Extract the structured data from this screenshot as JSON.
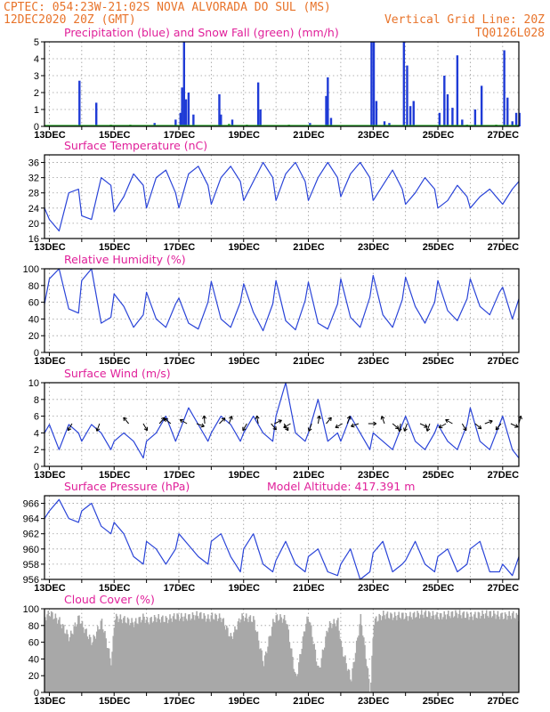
{
  "header": {
    "line1_left": "CPTEC:  054:23W-21:02S  NOVA ALVORADA DO SUL (MS)",
    "line2_left": "12DEC2020 20Z (GMT)",
    "line2_right": "Vertical Grid Line: 20Z",
    "line3_right": "TQ0126L028"
  },
  "colors": {
    "header": "#e8732a",
    "panel_title": "#e0209a",
    "precip": "#1f3bd6",
    "snow": "#22a022",
    "line": "#2a44d8",
    "cloud": "#a8a8a8",
    "wind_arrow": "#000000",
    "grid": "#9a9a9a"
  },
  "chart_data": [
    {
      "id": "precip",
      "type": "bar",
      "title": "Precipitation (blue) and Snow Fall (green) (mm/h)",
      "ylim": [
        0,
        5
      ],
      "yticks": [
        0,
        1,
        2,
        3,
        4,
        5
      ],
      "xticks": [
        "13DEC",
        "15DEC",
        "17DEC",
        "19DEC",
        "21DEC",
        "23DEC",
        "25DEC",
        "27DEC"
      ],
      "series": [
        {
          "name": "Precipitation",
          "color": "#1f3bd6",
          "values": [
            [
              0.93,
              2.7
            ],
            [
              1.45,
              1.4
            ],
            [
              3.25,
              0.2
            ],
            [
              3.9,
              0.4
            ],
            [
              4.05,
              0.8
            ],
            [
              4.1,
              2.3
            ],
            [
              4.16,
              5.0
            ],
            [
              4.22,
              1.6
            ],
            [
              4.3,
              2.0
            ],
            [
              4.45,
              0.7
            ],
            [
              5.25,
              1.9
            ],
            [
              5.3,
              0.7
            ],
            [
              5.65,
              0.4
            ],
            [
              6.45,
              2.6
            ],
            [
              6.52,
              1.0
            ],
            [
              8.05,
              0.2
            ],
            [
              8.55,
              1.8
            ],
            [
              8.6,
              2.9
            ],
            [
              8.7,
              0.5
            ],
            [
              9.95,
              5.0
            ],
            [
              10.02,
              5.0
            ],
            [
              10.1,
              1.5
            ],
            [
              10.35,
              0.3
            ],
            [
              10.5,
              0.2
            ],
            [
              10.95,
              5.0
            ],
            [
              11.05,
              3.6
            ],
            [
              11.15,
              1.2
            ],
            [
              11.25,
              1.5
            ],
            [
              12.05,
              0.8
            ],
            [
              12.2,
              3.0
            ],
            [
              12.3,
              1.9
            ],
            [
              12.45,
              1.1
            ],
            [
              12.6,
              4.2
            ],
            [
              12.75,
              0.4
            ],
            [
              13.15,
              1.0
            ],
            [
              13.35,
              2.4
            ],
            [
              14.05,
              4.5
            ],
            [
              14.15,
              1.7
            ],
            [
              14.3,
              0.3
            ],
            [
              14.42,
              0.8
            ],
            [
              14.52,
              0.8
            ]
          ]
        },
        {
          "name": "Snow Fall",
          "color": "#22a022",
          "values": [
            [
              1.9,
              0.1
            ],
            [
              2.5,
              0.1
            ],
            [
              5.55,
              0.15
            ],
            [
              6.1,
              0.1
            ],
            [
              7.4,
              0.1
            ],
            [
              12.9,
              0.1
            ],
            [
              13.8,
              0.1
            ]
          ]
        }
      ]
    },
    {
      "id": "temp",
      "type": "line",
      "title": "Surface Temperature (nC)",
      "ylim": [
        16,
        38
      ],
      "yticks": [
        16,
        20,
        24,
        28,
        32,
        36
      ],
      "xticks": [
        "13DEC",
        "15DEC",
        "17DEC",
        "19DEC",
        "21DEC",
        "23DEC",
        "25DEC",
        "27DEC"
      ],
      "x": [
        -0.15,
        0.0,
        0.3,
        0.6,
        0.9,
        1.0,
        1.3,
        1.6,
        1.9,
        2.0,
        2.3,
        2.6,
        2.9,
        3.0,
        3.3,
        3.6,
        3.9,
        4.0,
        4.3,
        4.6,
        4.9,
        5.0,
        5.3,
        5.6,
        5.9,
        6.0,
        6.3,
        6.6,
        6.9,
        7.0,
        7.3,
        7.6,
        7.9,
        8.0,
        8.3,
        8.6,
        8.9,
        9.0,
        9.3,
        9.6,
        9.9,
        10.0,
        10.3,
        10.6,
        10.9,
        11.0,
        11.3,
        11.6,
        11.9,
        12.0,
        12.3,
        12.6,
        12.9,
        13.0,
        13.3,
        13.6,
        13.9,
        14.0,
        14.3,
        14.5
      ],
      "series": [
        {
          "values": [
            24,
            21,
            18,
            28,
            29,
            22,
            21,
            32,
            30,
            23,
            27,
            33,
            30,
            24,
            32,
            34,
            28,
            24,
            33,
            35,
            30,
            25,
            32,
            35,
            31,
            26,
            31,
            36,
            32,
            26,
            33,
            36,
            31,
            26,
            32,
            36,
            32,
            27,
            33,
            36,
            32,
            26,
            30,
            34,
            29,
            25,
            28,
            32,
            29,
            24,
            26,
            30,
            27,
            24,
            27,
            29,
            26,
            25,
            29,
            31
          ]
        }
      ]
    },
    {
      "id": "rh",
      "type": "line",
      "title": "Relative Humidity (%)",
      "ylim": [
        0,
        100
      ],
      "yticks": [
        0,
        20,
        40,
        60,
        80,
        100
      ],
      "xticks": [
        "13DEC",
        "15DEC",
        "17DEC",
        "19DEC",
        "21DEC",
        "23DEC",
        "25DEC",
        "27DEC"
      ],
      "x": [
        -0.15,
        0.0,
        0.3,
        0.6,
        0.9,
        1.0,
        1.3,
        1.6,
        1.9,
        2.0,
        2.3,
        2.6,
        2.9,
        3.0,
        3.3,
        3.6,
        3.9,
        4.0,
        4.3,
        4.6,
        4.9,
        5.0,
        5.3,
        5.6,
        5.9,
        6.0,
        6.3,
        6.6,
        6.9,
        7.0,
        7.3,
        7.6,
        7.9,
        8.0,
        8.3,
        8.6,
        8.9,
        9.0,
        9.3,
        9.6,
        9.9,
        10.0,
        10.3,
        10.6,
        10.9,
        11.0,
        11.3,
        11.6,
        11.9,
        12.0,
        12.3,
        12.6,
        12.9,
        13.0,
        13.3,
        13.6,
        13.9,
        14.0,
        14.3,
        14.5
      ],
      "series": [
        {
          "values": [
            58,
            88,
            100,
            52,
            47,
            86,
            100,
            35,
            42,
            70,
            55,
            30,
            45,
            72,
            40,
            30,
            58,
            65,
            35,
            28,
            60,
            85,
            40,
            30,
            60,
            82,
            48,
            26,
            58,
            86,
            38,
            27,
            62,
            84,
            35,
            28,
            58,
            88,
            42,
            30,
            66,
            92,
            45,
            30,
            63,
            90,
            55,
            35,
            60,
            86,
            50,
            38,
            64,
            88,
            55,
            45,
            72,
            78,
            40,
            64
          ]
        }
      ]
    },
    {
      "id": "wind",
      "type": "line",
      "title": "Surface Wind (m/s)",
      "ylim": [
        0,
        10
      ],
      "yticks": [
        0,
        2,
        4,
        6,
        8,
        10
      ],
      "xticks": [
        "13DEC",
        "15DEC",
        "17DEC",
        "19DEC",
        "21DEC",
        "23DEC",
        "25DEC",
        "27DEC"
      ],
      "x": [
        -0.15,
        0.0,
        0.3,
        0.6,
        0.9,
        1.0,
        1.3,
        1.6,
        1.9,
        2.0,
        2.3,
        2.6,
        2.9,
        3.0,
        3.3,
        3.6,
        3.9,
        4.0,
        4.3,
        4.6,
        4.9,
        5.0,
        5.3,
        5.6,
        5.9,
        6.0,
        6.3,
        6.6,
        6.9,
        7.0,
        7.3,
        7.6,
        7.9,
        8.0,
        8.3,
        8.6,
        8.9,
        9.0,
        9.3,
        9.6,
        9.9,
        10.0,
        10.3,
        10.6,
        10.9,
        11.0,
        11.3,
        11.6,
        11.9,
        12.0,
        12.3,
        12.6,
        12.9,
        13.0,
        13.3,
        13.6,
        13.9,
        14.0,
        14.3,
        14.5
      ],
      "series": [
        {
          "values": [
            4,
            5,
            2,
            5,
            4,
            3,
            5,
            4,
            2,
            3,
            4,
            3,
            1,
            3,
            4,
            6,
            3,
            4,
            7,
            5,
            3,
            4,
            6,
            5,
            3,
            4,
            6,
            4,
            3,
            6,
            10,
            4,
            3,
            4,
            8,
            3,
            4,
            3,
            6,
            4,
            2,
            4,
            3,
            2,
            5,
            6,
            3,
            2,
            4,
            5,
            3,
            2,
            5,
            7,
            3,
            2,
            5,
            6,
            2,
            1
          ]
        }
      ],
      "arrows": [
        [
          0.7,
          210
        ],
        [
          1.55,
          200
        ],
        [
          2.45,
          320
        ],
        [
          2.9,
          150
        ],
        [
          3.4,
          40
        ],
        [
          3.75,
          310
        ],
        [
          4.25,
          300
        ],
        [
          4.55,
          110
        ],
        [
          4.8,
          355
        ],
        [
          5.25,
          45
        ],
        [
          5.55,
          20
        ],
        [
          6.1,
          210
        ],
        [
          6.45,
          350
        ],
        [
          6.85,
          140
        ],
        [
          6.95,
          65
        ],
        [
          7.25,
          150
        ],
        [
          7.45,
          240
        ],
        [
          8.1,
          200
        ],
        [
          8.3,
          10
        ],
        [
          8.55,
          40
        ],
        [
          9.05,
          240
        ],
        [
          9.2,
          20
        ],
        [
          9.55,
          250
        ],
        [
          9.85,
          90
        ],
        [
          10.35,
          340
        ],
        [
          10.6,
          130
        ],
        [
          10.85,
          190
        ],
        [
          11.05,
          200
        ],
        [
          11.45,
          115
        ],
        [
          11.75,
          200
        ],
        [
          12.25,
          240
        ],
        [
          12.45,
          300
        ],
        [
          12.75,
          150
        ],
        [
          13.15,
          130
        ],
        [
          13.45,
          70
        ],
        [
          13.95,
          220
        ],
        [
          14.25,
          115
        ],
        [
          14.5,
          15
        ]
      ]
    },
    {
      "id": "pressure",
      "type": "line",
      "title": "Surface Pressure (hPa)",
      "annotation": "Model Altitude: 417.391 m",
      "ylim": [
        956,
        967
      ],
      "yticks": [
        956,
        958,
        960,
        962,
        964,
        966
      ],
      "xticks": [
        "13DEC",
        "15DEC",
        "17DEC",
        "19DEC",
        "21DEC",
        "23DEC",
        "25DEC",
        "27DEC"
      ],
      "x": [
        -0.15,
        0.0,
        0.3,
        0.6,
        0.9,
        1.0,
        1.3,
        1.6,
        1.9,
        2.0,
        2.3,
        2.6,
        2.9,
        3.0,
        3.3,
        3.6,
        3.9,
        4.0,
        4.3,
        4.6,
        4.9,
        5.0,
        5.3,
        5.6,
        5.9,
        6.0,
        6.3,
        6.6,
        6.9,
        7.0,
        7.3,
        7.6,
        7.9,
        8.0,
        8.3,
        8.6,
        8.9,
        9.0,
        9.3,
        9.6,
        9.9,
        10.0,
        10.3,
        10.6,
        10.9,
        11.0,
        11.3,
        11.6,
        11.9,
        12.0,
        12.3,
        12.6,
        12.9,
        13.0,
        13.3,
        13.6,
        13.9,
        14.0,
        14.3,
        14.5
      ],
      "series": [
        {
          "values": [
            964,
            965,
            966.5,
            964,
            963.5,
            965,
            966,
            963,
            962,
            963.5,
            962,
            959,
            958,
            961,
            960,
            958,
            960,
            962,
            960.5,
            959,
            958,
            961,
            962,
            959,
            957,
            960,
            962,
            958,
            957,
            958.5,
            961,
            958,
            957,
            959,
            960,
            957,
            956.5,
            958,
            960,
            956,
            957,
            959.5,
            961,
            957,
            958,
            958.5,
            961,
            958,
            957,
            959,
            960,
            957,
            958,
            960,
            961,
            957,
            957,
            958,
            956.5,
            959
          ]
        }
      ]
    },
    {
      "id": "cloud",
      "type": "area",
      "title": "Cloud Cover (%)",
      "ylim": [
        0,
        100
      ],
      "yticks": [
        0,
        20,
        40,
        60,
        80,
        100
      ],
      "xticks": [
        "13DEC",
        "15DEC",
        "17DEC",
        "19DEC",
        "21DEC",
        "23DEC",
        "25DEC",
        "27DEC"
      ],
      "x": [
        -0.15,
        0.0,
        0.3,
        0.6,
        0.9,
        1.0,
        1.3,
        1.6,
        1.9,
        2.0,
        2.3,
        2.6,
        2.9,
        3.0,
        3.3,
        3.6,
        3.9,
        4.0,
        4.3,
        4.6,
        4.9,
        5.0,
        5.3,
        5.6,
        5.9,
        6.0,
        6.3,
        6.6,
        6.9,
        7.0,
        7.3,
        7.6,
        7.9,
        8.0,
        8.3,
        8.6,
        8.9,
        9.0,
        9.3,
        9.6,
        9.9,
        10.0,
        10.3,
        10.6,
        10.9,
        11.0,
        11.3,
        11.6,
        11.9,
        12.0,
        12.3,
        12.6,
        12.9,
        13.0,
        13.3,
        13.6,
        13.9,
        14.0,
        14.3,
        14.5
      ],
      "series": [
        {
          "values": [
            95,
            100,
            90,
            70,
            95,
            85,
            65,
            90,
            40,
            95,
            92,
            88,
            95,
            90,
            94,
            92,
            96,
            95,
            95,
            98,
            93,
            96,
            94,
            70,
            95,
            95,
            92,
            40,
            90,
            95,
            92,
            20,
            88,
            95,
            30,
            85,
            90,
            60,
            20,
            95,
            5,
            90,
            98,
            96,
            97,
            95,
            98,
            99,
            97,
            96,
            98,
            99,
            97,
            96,
            98,
            99,
            97,
            96,
            98,
            94
          ]
        }
      ]
    }
  ]
}
